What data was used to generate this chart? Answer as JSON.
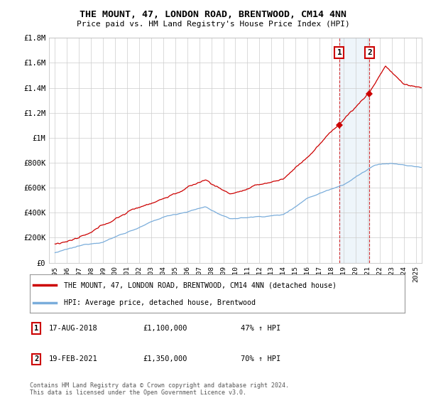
{
  "title": "THE MOUNT, 47, LONDON ROAD, BRENTWOOD, CM14 4NN",
  "subtitle": "Price paid vs. HM Land Registry's House Price Index (HPI)",
  "ylim": [
    0,
    1800000
  ],
  "yticks": [
    0,
    200000,
    400000,
    600000,
    800000,
    1000000,
    1200000,
    1400000,
    1600000,
    1800000
  ],
  "ytick_labels": [
    "£0",
    "£200K",
    "£400K",
    "£600K",
    "£800K",
    "£1M",
    "£1.2M",
    "£1.4M",
    "£1.6M",
    "£1.8M"
  ],
  "line1_color": "#cc0000",
  "line2_color": "#7aaddb",
  "transaction1_date": "17-AUG-2018",
  "transaction1_price": 1100000,
  "transaction1_hpi": "47% ↑ HPI",
  "transaction2_date": "19-FEB-2021",
  "transaction2_price": 1350000,
  "transaction2_hpi": "70% ↑ HPI",
  "legend1_label": "THE MOUNT, 47, LONDON ROAD, BRENTWOOD, CM14 4NN (detached house)",
  "legend2_label": "HPI: Average price, detached house, Brentwood",
  "footnote": "Contains HM Land Registry data © Crown copyright and database right 2024.\nThis data is licensed under the Open Government Licence v3.0.",
  "background_color": "#ffffff",
  "grid_color": "#cccccc",
  "start_year": 1995,
  "end_year": 2025
}
